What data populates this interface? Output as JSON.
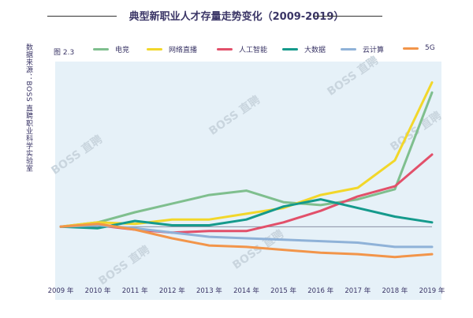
{
  "title": "典型新职业人才存量走势变化（2009-2019）",
  "source": "数据来源：BOSS 直聘职业科学实验室",
  "figure_label": "图 2.3",
  "watermark": "BOSS 直聘",
  "chart_data": {
    "type": "line",
    "title": "典型新职业人才存量走势变化（2009-2019）",
    "xlabel": "",
    "ylabel": "",
    "categories": [
      "2009 年",
      "2010 年",
      "2011 年",
      "2012 年",
      "2013 年",
      "2014 年",
      "2015 年",
      "2016 年",
      "2017 年",
      "2018 年",
      "2019 年"
    ],
    "ylim": [
      -37,
      109
    ],
    "baseline": 0,
    "grid": false,
    "legend_position": "top",
    "background": "#e6f1f8",
    "series": [
      {
        "name": "电竞",
        "color": "#7fbf8e",
        "values": [
          0,
          3,
          10,
          16,
          22,
          25,
          17,
          15,
          19,
          26,
          93
        ]
      },
      {
        "name": "网络直播",
        "color": "#f2d72a",
        "values": [
          0,
          3,
          2,
          5,
          5,
          9,
          13,
          22,
          27,
          46,
          100
        ]
      },
      {
        "name": "人工智能",
        "color": "#e2506a",
        "values": [
          0,
          1,
          -2,
          -4,
          -3,
          -3,
          3,
          11,
          21,
          28,
          50
        ]
      },
      {
        "name": "大数据",
        "color": "#159a8c",
        "values": [
          0,
          -1,
          4,
          1,
          1,
          5,
          14,
          19,
          13,
          7,
          3
        ]
      },
      {
        "name": "云计算",
        "color": "#8fb2d8",
        "values": [
          0,
          1,
          -1,
          -4,
          -7,
          -8,
          -9,
          -10,
          -11,
          -14,
          -14
        ]
      },
      {
        "name": "5G",
        "color": "#f2954a",
        "values": [
          0,
          2,
          -2,
          -8,
          -13,
          -14,
          -16,
          -18,
          -19,
          -21,
          -19
        ]
      }
    ]
  }
}
